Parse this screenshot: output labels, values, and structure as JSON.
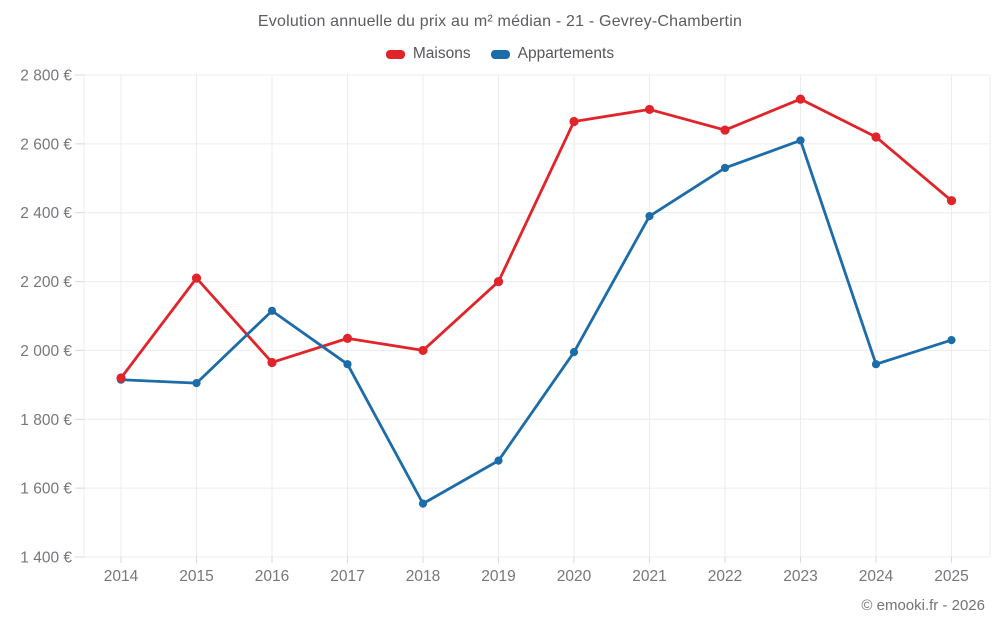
{
  "title": "Evolution annuelle du prix au m² médian - 21 - Gevrey-Chambertin",
  "footer": "© emooki.fr - 2026",
  "legend": {
    "items": [
      {
        "label": "Maisons",
        "color": "#e1242a"
      },
      {
        "label": "Appartements",
        "color": "#1b6ca9"
      }
    ]
  },
  "colors": {
    "maisons": "#e1242a",
    "appartements": "#1b6ca9",
    "gridline": "#ececec",
    "axis_text": "#76777b"
  },
  "chart_data": {
    "type": "line",
    "title": "Evolution annuelle du prix au m² médian - 21 - Gevrey-Chambertin",
    "categories": [
      "2014",
      "2015",
      "2016",
      "2017",
      "2018",
      "2019",
      "2020",
      "2021",
      "2022",
      "2023",
      "2024",
      "2025"
    ],
    "series": [
      {
        "name": "Maisons",
        "color": "#e1242a",
        "values": [
          1920,
          2210,
          1965,
          2035,
          2000,
          2200,
          2665,
          2700,
          2640,
          2730,
          2620,
          2435
        ]
      },
      {
        "name": "Appartements",
        "color": "#1b6ca9",
        "values": [
          1915,
          1905,
          2115,
          1960,
          1555,
          1680,
          1995,
          2390,
          2530,
          2610,
          1960,
          2030
        ]
      }
    ],
    "xlabel": "",
    "ylabel": "",
    "ylim": [
      1400,
      2800
    ],
    "y_tick_values": [
      1400,
      1600,
      1800,
      2000,
      2200,
      2400,
      2600,
      2800
    ],
    "y_tick_labels": [
      "1 400 €",
      "1 600 €",
      "1 800 €",
      "2 000 €",
      "2 200 €",
      "2 400 €",
      "2 600 €",
      "2 800 €"
    ],
    "grid": true,
    "legend_position": "top",
    "unit": "€"
  }
}
